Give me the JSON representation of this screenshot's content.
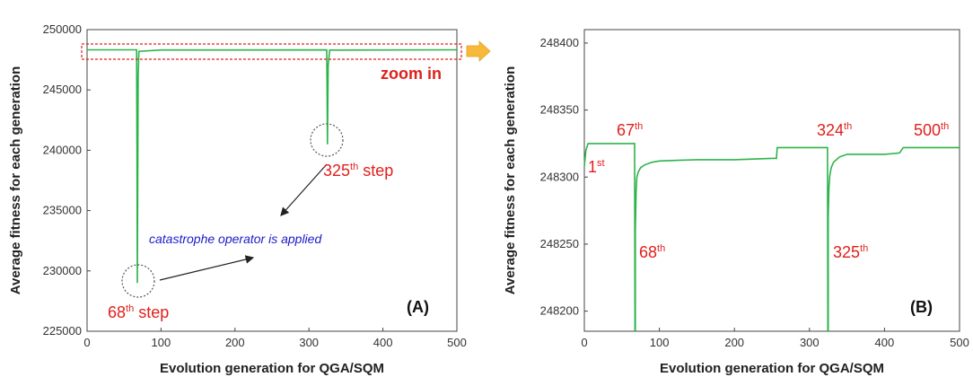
{
  "chart_data": [
    {
      "type": "line",
      "panel": "(A)",
      "xlabel": "Evolution generation for QGA/SQM",
      "ylabel": "Average fitness for each generation",
      "xlim": [
        0,
        500
      ],
      "ylim": [
        225000,
        250000
      ],
      "xticks": [
        0,
        100,
        200,
        300,
        400,
        500
      ],
      "yticks": [
        225000,
        230000,
        235000,
        240000,
        245000,
        250000
      ],
      "series": [
        {
          "name": "average fitness",
          "color": "#2db34a",
          "x": [
            0,
            67,
            67.5,
            68,
            69,
            70,
            100,
            324,
            324.5,
            325,
            326,
            328,
            500
          ],
          "y": [
            248326,
            248326,
            240000,
            229000,
            246000,
            248200,
            248312,
            248322,
            245000,
            240500,
            247000,
            248300,
            248323
          ]
        }
      ],
      "annotations": {
        "zoom_label": "zoom in",
        "catastrophe_text": "catastrophe operator is applied",
        "step68": {
          "num": "68",
          "sup": "th",
          "word": " step"
        },
        "step325": {
          "num": "325",
          "sup": "th",
          "word": " step"
        }
      }
    },
    {
      "type": "line",
      "panel": "(B)",
      "xlabel": "Evolution generation for QGA/SQM",
      "ylabel": "Average fitness for each generation",
      "xlim": [
        0,
        500
      ],
      "ylim": [
        248185,
        248410
      ],
      "xticks": [
        0,
        100,
        200,
        300,
        400,
        500
      ],
      "yticks": [
        248200,
        248250,
        248300,
        248350,
        248400
      ],
      "series": [
        {
          "name": "average fitness",
          "color": "#2db34a",
          "x": [
            0,
            2,
            5,
            67,
            67.5,
            68,
            68,
            69,
            70,
            72,
            75,
            80,
            90,
            100,
            150,
            200,
            250,
            256,
            257,
            300,
            324,
            324.5,
            325,
            325,
            326,
            327,
            329,
            332,
            340,
            350,
            400,
            420,
            425,
            500
          ],
          "y": [
            248308,
            248320,
            248325,
            248325,
            248185,
            248185,
            248260,
            248290,
            248300,
            248304,
            248307,
            248309,
            248311,
            248312,
            248313,
            248313,
            248314,
            248314,
            248322,
            248322,
            248322,
            248185,
            248185,
            248270,
            248292,
            248301,
            248307,
            248311,
            248315,
            248317,
            248317,
            248318,
            248322,
            248322
          ]
        }
      ],
      "labels": {
        "l1": {
          "num": "1",
          "sup": "st"
        },
        "l67": {
          "num": "67",
          "sup": "th"
        },
        "l68": {
          "num": "68",
          "sup": "th"
        },
        "l324": {
          "num": "324",
          "sup": "th"
        },
        "l325": {
          "num": "325",
          "sup": "th"
        },
        "l500": {
          "num": "500",
          "sup": "th"
        }
      }
    }
  ],
  "colors": {
    "line": "#2db34a",
    "red": "#e0201c",
    "blue": "#1a1acc",
    "arrow": "#f6b93b"
  }
}
